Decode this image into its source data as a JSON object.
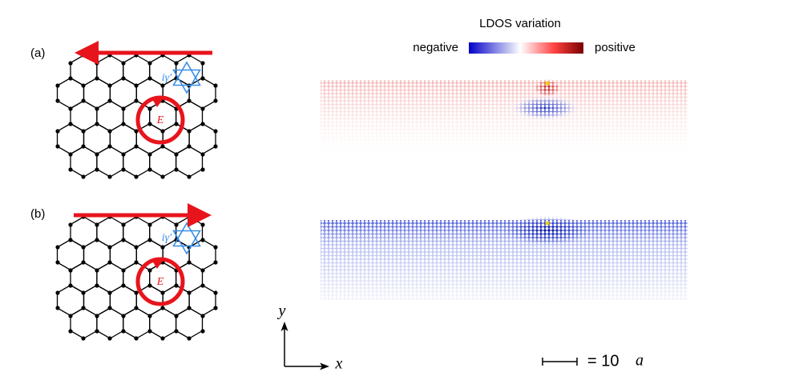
{
  "panels": [
    {
      "label": "(a)",
      "hopping": "iγ′",
      "field": "E"
    },
    {
      "label": "(b)",
      "hopping": "iγ′",
      "field": "E"
    }
  ],
  "colorbar": {
    "title": "LDOS variation",
    "low": "negative",
    "high": "positive"
  },
  "axes": {
    "y": "y",
    "x": "x"
  },
  "scale": {
    "label": "= 10",
    "unit": "a"
  }
}
